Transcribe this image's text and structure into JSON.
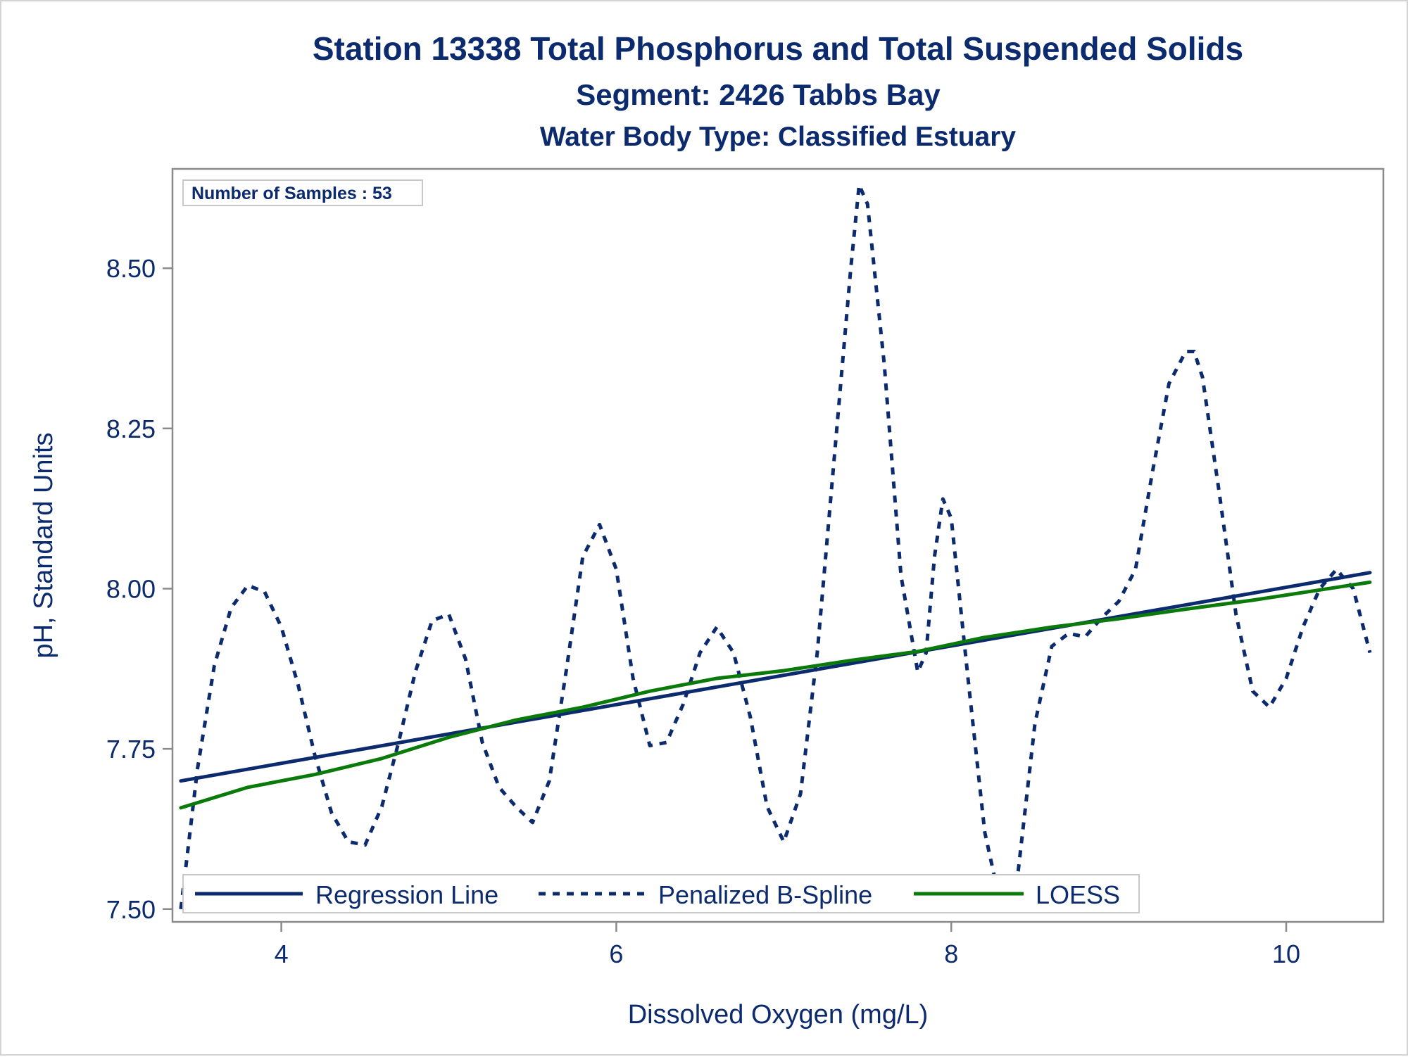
{
  "chart_data": {
    "type": "line",
    "title": "Station 13338  Total Phosphorus and Total Suspended Solids",
    "subtitle": "Segment: 2426  Tabbs Bay",
    "subtitle2": "Water Body Type: Classified Estuary",
    "xlabel": "Dissolved Oxygen (mg/L)",
    "ylabel": "pH, Standard Units",
    "xlim": [
      3.35,
      10.58
    ],
    "ylim": [
      7.48,
      8.655
    ],
    "xticks": [
      4,
      6,
      8,
      10
    ],
    "xtick_labels": [
      "4",
      "6",
      "8",
      "10"
    ],
    "yticks": [
      7.5,
      7.75,
      8.0,
      8.25,
      8.5
    ],
    "ytick_labels": [
      "7.50",
      "7.75",
      "8.00",
      "8.25",
      "8.50"
    ],
    "grid": false,
    "legend_position": "bottom-inside",
    "inset_label": "Number of Samples : 53",
    "series": [
      {
        "name": "Regression Line",
        "style": "solid",
        "color": "#0c2a6e",
        "x": [
          3.4,
          10.5
        ],
        "y": [
          7.7,
          8.025
        ]
      },
      {
        "name": "Penalized B-Spline",
        "style": "dashed",
        "color": "#0c2a6e",
        "x": [
          3.4,
          3.5,
          3.6,
          3.7,
          3.8,
          3.9,
          4.0,
          4.1,
          4.2,
          4.3,
          4.4,
          4.5,
          4.6,
          4.7,
          4.8,
          4.9,
          5.0,
          5.1,
          5.2,
          5.3,
          5.4,
          5.5,
          5.6,
          5.7,
          5.8,
          5.9,
          6.0,
          6.1,
          6.2,
          6.3,
          6.4,
          6.5,
          6.6,
          6.7,
          6.8,
          6.9,
          7.0,
          7.1,
          7.2,
          7.3,
          7.4,
          7.45,
          7.5,
          7.6,
          7.7,
          7.8,
          7.85,
          7.9,
          7.95,
          8.0,
          8.1,
          8.2,
          8.3,
          8.35,
          8.4,
          8.5,
          8.6,
          8.7,
          8.8,
          8.9,
          9.0,
          9.1,
          9.2,
          9.3,
          9.4,
          9.45,
          9.5,
          9.6,
          9.7,
          9.8,
          9.9,
          10.0,
          10.1,
          10.2,
          10.3,
          10.4,
          10.5
        ],
        "y": [
          7.5,
          7.72,
          7.88,
          7.97,
          8.005,
          7.995,
          7.94,
          7.85,
          7.74,
          7.65,
          7.605,
          7.6,
          7.66,
          7.76,
          7.87,
          7.95,
          7.96,
          7.89,
          7.76,
          7.69,
          7.66,
          7.635,
          7.7,
          7.87,
          8.05,
          8.1,
          8.03,
          7.86,
          7.755,
          7.76,
          7.82,
          7.9,
          7.94,
          7.9,
          7.8,
          7.66,
          7.605,
          7.68,
          7.9,
          8.2,
          8.5,
          8.63,
          8.6,
          8.35,
          8.02,
          7.87,
          7.9,
          8.05,
          8.14,
          8.11,
          7.86,
          7.62,
          7.5,
          7.5,
          7.56,
          7.79,
          7.91,
          7.93,
          7.925,
          7.955,
          7.98,
          8.03,
          8.18,
          8.32,
          8.37,
          8.37,
          8.33,
          8.15,
          7.96,
          7.84,
          7.815,
          7.86,
          7.94,
          8.0,
          8.03,
          8.0,
          7.9
        ]
      },
      {
        "name": "LOESS",
        "style": "solid",
        "color": "#0a7a0a",
        "x": [
          3.4,
          3.8,
          4.2,
          4.6,
          5.0,
          5.4,
          5.8,
          6.2,
          6.6,
          7.0,
          7.4,
          7.8,
          8.2,
          8.6,
          9.0,
          9.4,
          9.8,
          10.2,
          10.5
        ],
        "y": [
          7.658,
          7.69,
          7.71,
          7.735,
          7.768,
          7.795,
          7.815,
          7.84,
          7.86,
          7.872,
          7.888,
          7.902,
          7.924,
          7.94,
          7.953,
          7.968,
          7.982,
          7.998,
          8.01
        ]
      }
    ]
  }
}
